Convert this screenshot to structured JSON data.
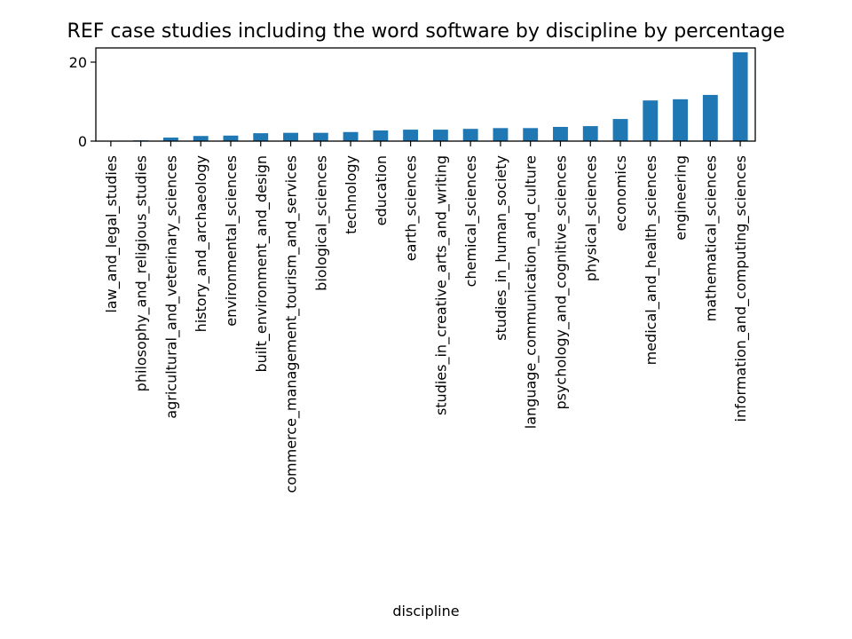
{
  "chart_data": {
    "type": "bar",
    "title": "REF case studies including the word software by discipline by percentage",
    "xlabel": "discipline",
    "ylabel": "",
    "ylim": [
      0,
      23.6
    ],
    "yticks": [
      0,
      20
    ],
    "grid": false,
    "legend": "none",
    "bar_color": "#1f77b4",
    "categories": [
      "law_and_legal_studies",
      "philosophy_and_religious_studies",
      "agricultural_and_veterinary_sciences",
      "history_and_archaeology",
      "environmental_sciences",
      "built_environment_and_design",
      "commerce_management_tourism_and_services",
      "biological_sciences",
      "technology",
      "education",
      "earth_sciences",
      "studies_in_creative_arts_and_writing",
      "chemical_sciences",
      "studies_in_human_society",
      "language_communication_and_culture",
      "psychology_and_cognitive_sciences",
      "physical_sciences",
      "economics",
      "medical_and_health_sciences",
      "engineering",
      "mathematical_sciences",
      "information_and_computing_sciences"
    ],
    "values": [
      0.1,
      0.2,
      0.9,
      1.3,
      1.4,
      2.0,
      2.1,
      2.1,
      2.3,
      2.7,
      2.9,
      2.9,
      3.1,
      3.3,
      3.3,
      3.6,
      3.8,
      5.6,
      10.3,
      10.6,
      11.7,
      22.5
    ]
  }
}
